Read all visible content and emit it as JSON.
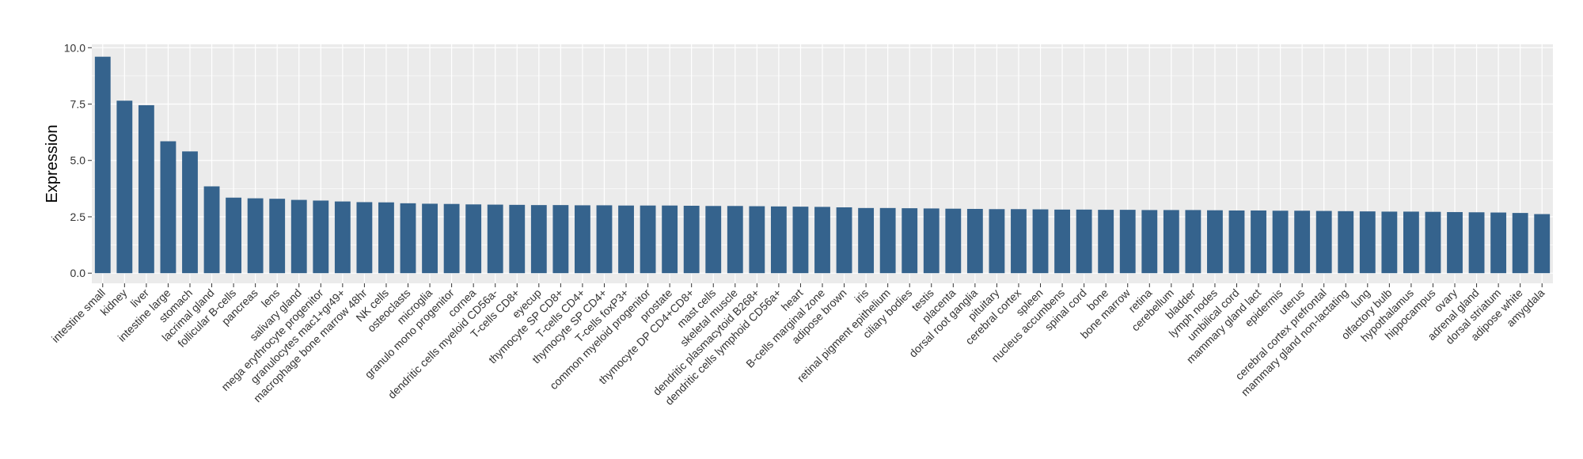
{
  "chart_data": {
    "type": "bar",
    "title": "",
    "xlabel": "",
    "ylabel": "Expression",
    "ylim": [
      -0.45,
      10.15
    ],
    "yticks": [
      0.0,
      2.5,
      5.0,
      7.5,
      10.0
    ],
    "ytick_labels": [
      "0.0",
      "2.5",
      "5.0",
      "7.5",
      "10.0"
    ],
    "grid": true,
    "legend": "none",
    "colors": {
      "bar": "#35638d",
      "panel": "#ebebeb",
      "grid": "#ffffff",
      "text": "#333333"
    },
    "categories": [
      "intestine small",
      "kidney",
      "liver",
      "intestine large",
      "stomach",
      "lacrimal gland",
      "follicular B-cells",
      "pancreas",
      "lens",
      "salivary gland",
      "mega erythrocyte progenitor",
      "granulocytes mac1+gr49+",
      "macrophage bone marrow 48hr",
      "NK cells",
      "osteoclasts",
      "microglia",
      "granulo mono progenitor",
      "cornea",
      "dendritic cells myeloid CD56a-",
      "T-cells CD8+",
      "eyecup",
      "thymocyte SP CD8+",
      "T-cells CD4+",
      "thymocyte SP CD4+",
      "T-cells foxP3+",
      "common myeloid progenitor",
      "prostate",
      "thymocyte DP CD4+CD8+",
      "mast cells",
      "skeletal muscle",
      "dendritic plasmacytoid B268+",
      "dendritic cells lymphoid CD56a+",
      "heart",
      "B-cells marginal zone",
      "adipose brown",
      "iris",
      "retinal pigment epithelium",
      "ciliary bodies",
      "testis",
      "placenta",
      "dorsal root ganglia",
      "pituitary",
      "cerebral cortex",
      "spleen",
      "nucleus accumbens",
      "spinal cord",
      "bone",
      "bone marrow",
      "retina",
      "cerebellum",
      "bladder",
      "lymph nodes",
      "umbilical cord",
      "mammary gland lact",
      "epidermis",
      "uterus",
      "cerebral cortex prefrontal",
      "mammary gland non-lactating",
      "lung",
      "olfactory bulb",
      "hypothalamus",
      "hippocampus",
      "ovary",
      "adrenal gland",
      "dorsal striatum",
      "adipose white",
      "amygdala"
    ],
    "values": [
      9.6,
      7.65,
      7.45,
      5.85,
      5.4,
      3.85,
      3.35,
      3.32,
      3.3,
      3.25,
      3.22,
      3.18,
      3.15,
      3.14,
      3.1,
      3.08,
      3.07,
      3.05,
      3.04,
      3.03,
      3.02,
      3.02,
      3.01,
      3.01,
      3.0,
      3.0,
      3.0,
      2.99,
      2.98,
      2.98,
      2.97,
      2.96,
      2.95,
      2.94,
      2.92,
      2.89,
      2.89,
      2.88,
      2.87,
      2.86,
      2.85,
      2.84,
      2.84,
      2.83,
      2.82,
      2.82,
      2.81,
      2.81,
      2.8,
      2.8,
      2.8,
      2.79,
      2.78,
      2.78,
      2.77,
      2.77,
      2.76,
      2.75,
      2.74,
      2.73,
      2.73,
      2.72,
      2.71,
      2.7,
      2.69,
      2.67,
      2.62
    ]
  }
}
